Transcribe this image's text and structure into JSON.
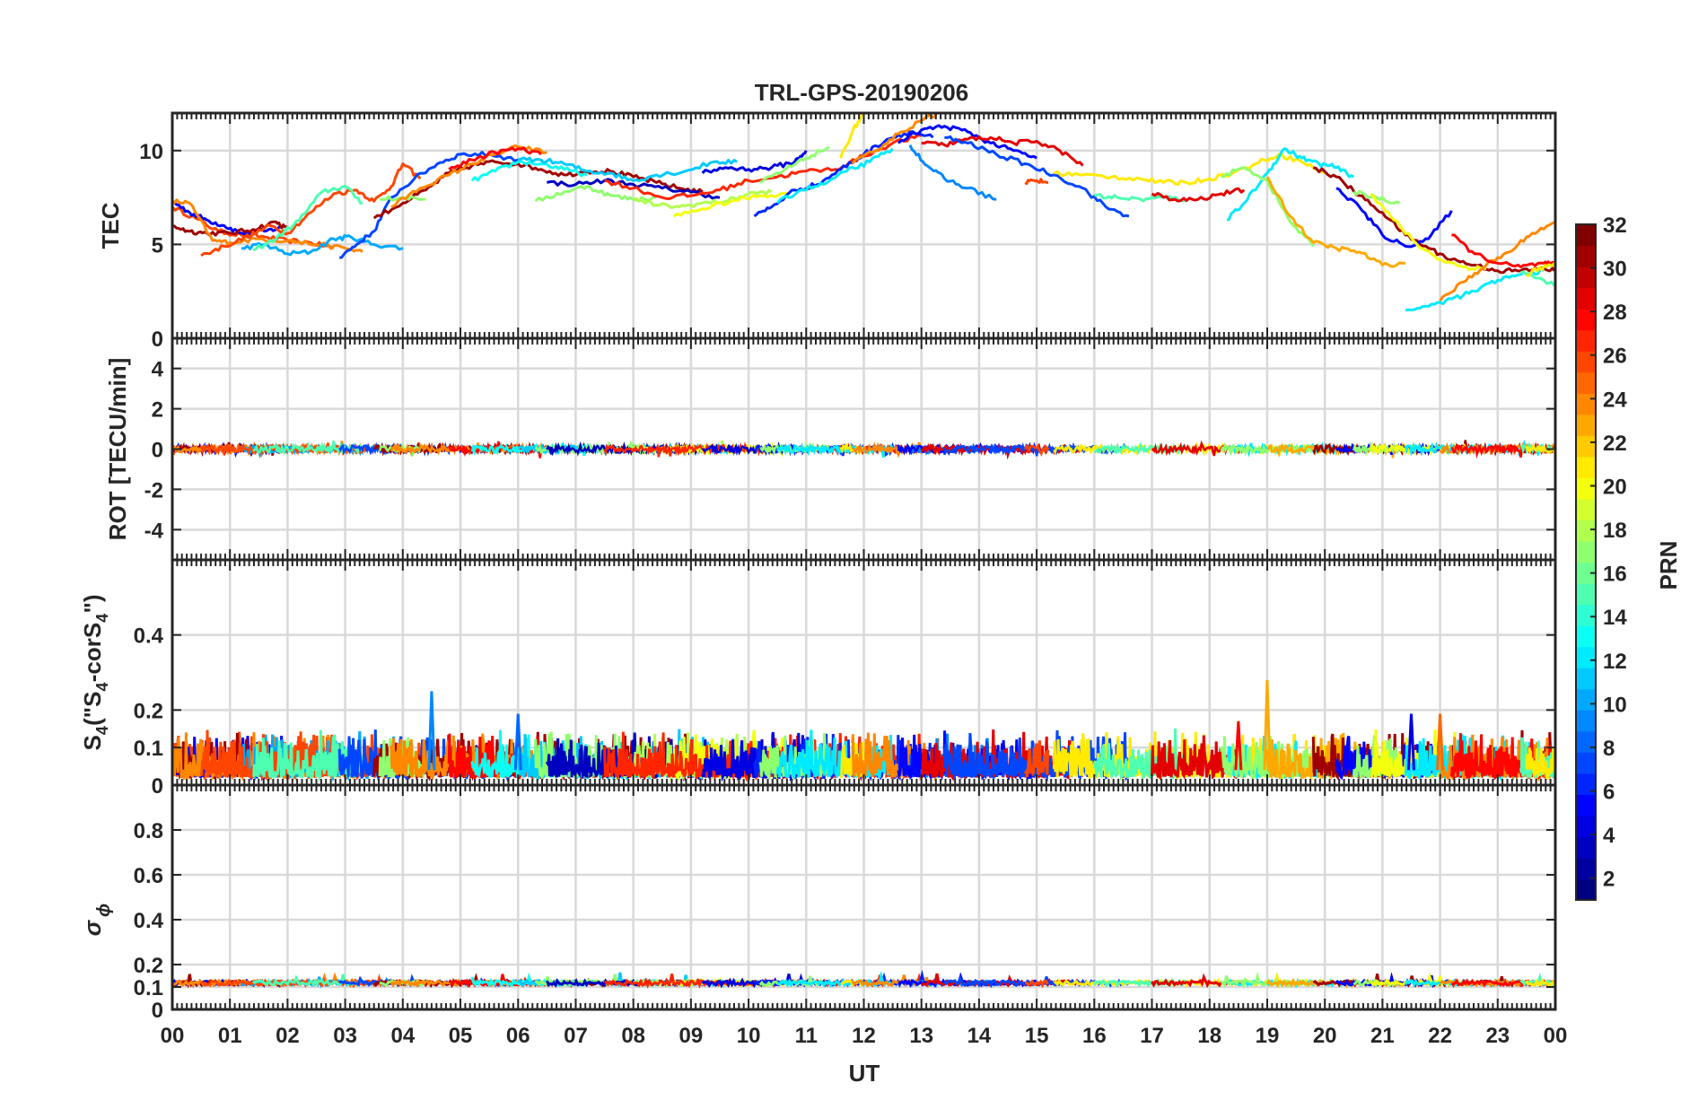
{
  "figure": {
    "title": "TRL-GPS-20190206",
    "xlabel": "UT",
    "x_tick_labels": [
      "00",
      "01",
      "02",
      "03",
      "04",
      "05",
      "06",
      "07",
      "08",
      "09",
      "10",
      "11",
      "12",
      "13",
      "14",
      "15",
      "16",
      "17",
      "18",
      "19",
      "20",
      "21",
      "22",
      "23",
      "00"
    ]
  },
  "colorbar": {
    "label": "PRN",
    "range": [
      1,
      32
    ],
    "tick_values": [
      2,
      4,
      6,
      8,
      10,
      12,
      14,
      16,
      18,
      20,
      22,
      24,
      26,
      28,
      30,
      32
    ],
    "tick_labels": [
      "2",
      "4",
      "6",
      "8",
      "10",
      "12",
      "14",
      "16",
      "18",
      "20",
      "22",
      "24",
      "26",
      "28",
      "30",
      "32"
    ],
    "colormap": "jet"
  },
  "panels": [
    {
      "id": "tec",
      "ylabel": "TEC",
      "ylim": [
        0,
        12
      ],
      "yticks": [
        0,
        5,
        10
      ],
      "ytick_labels": [
        "0",
        "5",
        "10"
      ]
    },
    {
      "id": "rot",
      "ylabel": "ROT [TECU/min]",
      "ylim": [
        -5.5,
        5.5
      ],
      "yticks": [
        -4,
        -2,
        0,
        2,
        4
      ],
      "ytick_labels": [
        "-4",
        "-2",
        "0",
        "2",
        "4"
      ]
    },
    {
      "id": "s4",
      "ylabel": "S",
      "ylabel_sub": "4",
      "ylabel_tail": " (\"S",
      "ylabel_sub2": "4",
      "ylabel_mid": "-corS",
      "ylabel_sub3": "4",
      "ylabel_end": "\")",
      "ylim": [
        0,
        0.6
      ],
      "yticks": [
        0,
        0.1,
        0.2,
        0.4
      ],
      "ytick_labels": [
        "0",
        "0.1",
        "0.2",
        "0.4"
      ]
    },
    {
      "id": "sigma",
      "ylabel": "σ",
      "ylabel_sub": "ϕ",
      "ylim": [
        0,
        1
      ],
      "yticks": [
        0,
        0.1,
        0.2,
        0.4,
        0.6,
        0.8
      ],
      "ytick_labels": [
        "0",
        "0.1",
        "0.2",
        "0.4",
        "0.6",
        "0.8"
      ]
    }
  ],
  "chart_data": [
    {
      "type": "line",
      "title": "TRL-GPS-20190206",
      "xlabel": "UT",
      "ylabel": "TEC",
      "xlim": [
        0,
        24
      ],
      "ylim": [
        0,
        12
      ],
      "series": [
        {
          "prn": 26,
          "x": [
            0.0,
            0.4,
            0.8,
            1.2,
            1.6,
            2.0,
            2.4,
            2.8
          ],
          "y": [
            7.0,
            6.4,
            5.7,
            5.5,
            5.4,
            5.2,
            5.1,
            4.8
          ]
        },
        {
          "prn": 5,
          "x": [
            0.0,
            0.3,
            0.6,
            0.9,
            1.2,
            1.6,
            1.9
          ],
          "y": [
            7.3,
            6.7,
            6.3,
            6.0,
            5.6,
            5.7,
            5.9
          ]
        },
        {
          "prn": 31,
          "x": [
            0.0,
            0.3,
            0.6,
            1.0,
            1.4,
            1.8,
            2.0
          ],
          "y": [
            6.0,
            5.7,
            5.6,
            5.6,
            5.8,
            6.2,
            5.8
          ]
        },
        {
          "prn": 24,
          "x": [
            0.0,
            0.3,
            0.7,
            1.0,
            1.5,
            2.0,
            2.5,
            3.0,
            3.3
          ],
          "y": [
            7.3,
            7.2,
            5.2,
            5.1,
            5.3,
            5.2,
            5.0,
            4.8,
            4.6
          ]
        },
        {
          "prn": 10,
          "x": [
            1.2,
            1.6,
            2.0,
            2.4,
            2.8,
            3.1,
            3.5,
            4.0
          ],
          "y": [
            4.8,
            5.0,
            4.5,
            4.6,
            5.3,
            5.4,
            5.0,
            4.8
          ]
        },
        {
          "prn": 26,
          "x": [
            0.5,
            0.9,
            1.3,
            1.7,
            2.0,
            2.4,
            2.8,
            3.2,
            3.5,
            3.8,
            4.0,
            4.3
          ],
          "y": [
            4.4,
            4.9,
            5.4,
            6.0,
            5.6,
            6.7,
            7.7,
            7.9,
            7.3,
            8.1,
            9.3,
            8.5
          ]
        },
        {
          "prn": 15,
          "x": [
            1.4,
            1.8,
            2.2,
            2.6,
            3.0,
            3.3
          ],
          "y": [
            4.7,
            5.3,
            6.3,
            7.8,
            8.1,
            7.2
          ]
        },
        {
          "prn": 7,
          "x": [
            2.9,
            3.2,
            3.5,
            3.8,
            4.2,
            4.6,
            5.0,
            5.5,
            6.0
          ],
          "y": [
            4.3,
            5.0,
            5.7,
            7.5,
            8.5,
            9.3,
            9.8,
            9.8,
            9.5
          ]
        },
        {
          "prn": 31,
          "x": [
            3.5,
            4.0,
            4.4,
            4.8,
            5.2,
            5.6,
            6.0,
            6.4,
            6.8,
            7.2,
            7.6,
            8.0,
            8.4,
            8.8,
            9.2
          ],
          "y": [
            6.4,
            7.2,
            7.9,
            8.8,
            9.2,
            9.4,
            9.3,
            9.0,
            8.7,
            8.9,
            8.9,
            8.6,
            8.3,
            8.0,
            7.8
          ]
        },
        {
          "prn": 17,
          "x": [
            3.6,
            4.0,
            4.4
          ],
          "y": [
            7.4,
            7.5,
            7.4
          ]
        },
        {
          "prn": 24,
          "x": [
            3.8,
            4.3,
            4.8,
            5.2,
            5.6,
            6.0,
            6.5
          ],
          "y": [
            7.0,
            8.0,
            8.7,
            9.3,
            9.8,
            10.2,
            9.9
          ]
        },
        {
          "prn": 28,
          "x": [
            4.8,
            5.2,
            5.6,
            6.0,
            6.4
          ],
          "y": [
            9.0,
            9.5,
            9.9,
            10.1,
            9.8
          ]
        },
        {
          "prn": 13,
          "x": [
            5.2,
            5.6,
            6.0,
            6.4,
            6.8,
            7.2
          ],
          "y": [
            8.4,
            8.9,
            9.4,
            9.3,
            9.0,
            8.7
          ]
        },
        {
          "prn": 11,
          "x": [
            6.0,
            6.4,
            6.8,
            7.2,
            7.6,
            8.0,
            8.4,
            8.9,
            9.4,
            9.8
          ],
          "y": [
            9.5,
            9.5,
            9.3,
            8.9,
            8.8,
            8.4,
            8.7,
            8.9,
            9.4,
            9.4
          ]
        },
        {
          "prn": 17,
          "x": [
            6.3,
            6.8,
            7.2,
            7.6,
            8.0,
            8.4
          ],
          "y": [
            7.3,
            7.8,
            8.1,
            7.6,
            7.4,
            7.5
          ]
        },
        {
          "prn": 3,
          "x": [
            6.5,
            7.0,
            7.5,
            8.0,
            8.5,
            9.0,
            9.5
          ],
          "y": [
            8.3,
            8.2,
            8.4,
            8.2,
            8.0,
            7.8,
            7.5
          ]
        },
        {
          "prn": 18,
          "x": [
            8.0,
            8.4,
            8.8,
            9.2,
            9.6,
            10.0,
            10.4
          ],
          "y": [
            7.4,
            7.1,
            7.0,
            7.2,
            7.3,
            7.7,
            7.8
          ]
        },
        {
          "prn": 20,
          "x": [
            8.7,
            9.2,
            9.7,
            10.2,
            10.7
          ],
          "y": [
            6.5,
            6.9,
            7.3,
            7.6,
            7.7
          ]
        },
        {
          "prn": 27,
          "x": [
            7.5,
            8.0,
            8.5,
            9.0,
            9.5,
            10.0,
            10.5,
            11.0,
            11.5,
            12.0,
            12.5,
            13.0
          ],
          "y": [
            8.4,
            8.0,
            7.5,
            7.6,
            7.9,
            8.4,
            8.6,
            8.9,
            9.0,
            9.7,
            10.4,
            10.8
          ]
        },
        {
          "prn": 4,
          "x": [
            9.2,
            9.6,
            10.0,
            10.4,
            10.8,
            11.0
          ],
          "y": [
            8.8,
            9.1,
            9.0,
            9.1,
            9.4,
            10.0
          ]
        },
        {
          "prn": 6,
          "x": [
            10.1,
            10.4,
            10.8,
            11.2,
            11.6,
            12.0,
            12.4,
            12.8,
            13.2
          ],
          "y": [
            6.5,
            7.0,
            7.9,
            8.2,
            9.0,
            9.8,
            10.6,
            11.0,
            10.7
          ]
        },
        {
          "prn": 17,
          "x": [
            10.2,
            10.6,
            11.0,
            11.4
          ],
          "y": [
            8.3,
            8.9,
            9.6,
            10.2
          ]
        },
        {
          "prn": 12,
          "x": [
            10.5,
            10.9,
            11.3,
            11.7,
            12.1,
            12.5
          ],
          "y": [
            7.2,
            7.9,
            8.2,
            8.9,
            9.4,
            10.1
          ]
        },
        {
          "prn": 21,
          "x": [
            11.6,
            11.8,
            12.0
          ],
          "y": [
            9.6,
            11.0,
            12.0
          ]
        },
        {
          "prn": 24,
          "x": [
            11.8,
            12.2,
            12.6,
            13.0,
            13.3
          ],
          "y": [
            9.3,
            10.0,
            10.9,
            11.6,
            12.0
          ]
        },
        {
          "prn": 9,
          "x": [
            12.8,
            13.1,
            13.4,
            13.8,
            14.3
          ],
          "y": [
            10.3,
            9.2,
            8.5,
            8.0,
            7.4
          ]
        },
        {
          "prn": 5,
          "x": [
            12.6,
            13.0,
            13.4,
            13.8,
            14.2,
            14.6,
            15.0
          ],
          "y": [
            10.4,
            11.1,
            11.3,
            11.0,
            10.4,
            10.0,
            9.6
          ]
        },
        {
          "prn": 29,
          "x": [
            13.0,
            13.4,
            13.8,
            14.2,
            14.6,
            15.0,
            15.4,
            15.8
          ],
          "y": [
            10.4,
            10.3,
            10.6,
            10.7,
            10.4,
            10.5,
            10.0,
            9.2
          ]
        },
        {
          "prn": 7,
          "x": [
            13.4,
            13.8,
            14.3,
            14.8,
            15.3,
            15.8,
            16.2,
            16.6
          ],
          "y": [
            10.7,
            10.4,
            9.8,
            9.3,
            8.7,
            8.0,
            7.0,
            6.5
          ]
        },
        {
          "prn": 26,
          "x": [
            14.8,
            15.0,
            15.2
          ],
          "y": [
            8.3,
            8.4,
            8.3
          ]
        },
        {
          "prn": 21,
          "x": [
            15.3,
            15.8,
            16.3,
            16.8,
            17.2,
            17.6,
            18.0,
            18.4,
            18.8,
            19.2,
            19.6,
            20.0
          ],
          "y": [
            8.8,
            8.7,
            8.6,
            8.5,
            8.3,
            8.3,
            8.5,
            8.8,
            9.3,
            9.8,
            9.4,
            8.8
          ]
        },
        {
          "prn": 15,
          "x": [
            16.0,
            16.4,
            16.8,
            17.2,
            17.6
          ],
          "y": [
            7.6,
            7.5,
            7.4,
            7.5,
            7.4
          ]
        },
        {
          "prn": 29,
          "x": [
            17.0,
            17.4,
            17.8,
            18.2,
            18.6
          ],
          "y": [
            7.7,
            7.4,
            7.4,
            7.7,
            7.9
          ]
        },
        {
          "prn": 12,
          "x": [
            18.3,
            18.6,
            19.0,
            19.3,
            19.6,
            19.9,
            20.2,
            20.5
          ],
          "y": [
            6.3,
            7.2,
            8.8,
            10.1,
            9.6,
            9.3,
            9.1,
            8.6
          ]
        },
        {
          "prn": 17,
          "x": [
            18.2,
            18.6,
            19.0,
            19.4,
            19.8
          ],
          "y": [
            8.6,
            9.1,
            8.4,
            6.2,
            4.9
          ]
        },
        {
          "prn": 23,
          "x": [
            19.0,
            19.4,
            19.8,
            20.2,
            20.6,
            21.0,
            21.4
          ],
          "y": [
            8.6,
            6.5,
            5.1,
            4.8,
            4.6,
            3.9,
            4.0
          ]
        },
        {
          "prn": 31,
          "x": [
            19.8,
            20.2,
            20.6,
            21.0,
            21.4,
            21.8,
            22.2,
            22.6,
            23.0,
            23.4,
            23.8,
            24.0
          ],
          "y": [
            9.1,
            8.6,
            7.6,
            6.7,
            5.5,
            4.8,
            4.2,
            3.9,
            3.6,
            3.6,
            3.7,
            3.6
          ]
        },
        {
          "prn": 5,
          "x": [
            20.2,
            20.6,
            21.0,
            21.4,
            21.8,
            22.2
          ],
          "y": [
            8.0,
            7.0,
            5.5,
            4.9,
            5.3,
            6.8
          ]
        },
        {
          "prn": 17,
          "x": [
            20.5,
            20.9,
            21.3
          ],
          "y": [
            7.8,
            7.5,
            7.2
          ]
        },
        {
          "prn": 20,
          "x": [
            20.8,
            21.2,
            21.6,
            22.0,
            22.4,
            22.8
          ],
          "y": [
            7.7,
            6.3,
            5.0,
            4.2,
            3.8,
            3.7
          ]
        },
        {
          "prn": 12,
          "x": [
            21.4,
            21.8,
            22.2,
            22.6,
            23.0,
            23.4,
            23.8
          ],
          "y": [
            1.5,
            1.7,
            2.1,
            2.5,
            3.1,
            3.4,
            3.6
          ]
        },
        {
          "prn": 24,
          "x": [
            22.0,
            22.4,
            22.8,
            23.2,
            23.6,
            24.0
          ],
          "y": [
            2.0,
            3.0,
            3.9,
            4.6,
            5.6,
            6.2
          ]
        },
        {
          "prn": 28,
          "x": [
            22.2,
            22.6,
            23.0,
            23.4,
            23.8,
            24.0
          ],
          "y": [
            5.5,
            4.5,
            4.0,
            3.8,
            4.0,
            3.9
          ]
        },
        {
          "prn": 15,
          "x": [
            23.4,
            23.8,
            24.0
          ],
          "y": [
            3.5,
            3.1,
            2.8
          ]
        },
        {
          "prn": 21,
          "x": [
            23.5,
            23.8,
            24.0
          ],
          "y": [
            3.4,
            3.8,
            4.0
          ]
        }
      ]
    },
    {
      "type": "line",
      "ylabel": "ROT [TECU/min]",
      "xlim": [
        0,
        24
      ],
      "ylim": [
        -5.5,
        5.5
      ],
      "description_values": "ROT values are centered near 0 with fluctuations of roughly ±0.3 TECU/min for all PRNs throughout the day"
    },
    {
      "type": "line",
      "ylabel": "S4 (\"S4-corS4\")",
      "xlim": [
        0,
        24
      ],
      "ylim": [
        0,
        0.6
      ],
      "annotations": [
        {
          "x": 4.5,
          "y": 0.25,
          "prn": 9
        },
        {
          "x": 19.0,
          "y": 0.28,
          "prn": 23
        },
        {
          "x": 6.0,
          "y": 0.19,
          "prn": 8
        },
        {
          "x": 21.5,
          "y": 0.19,
          "prn": 4
        },
        {
          "x": 22.0,
          "y": 0.19,
          "prn": 25
        },
        {
          "x": 18.5,
          "y": 0.17,
          "prn": 28
        }
      ],
      "typical_range": [
        0.02,
        0.14
      ]
    },
    {
      "type": "line",
      "ylabel": "σϕ",
      "xlim": [
        0,
        24
      ],
      "ylim": [
        0,
        1
      ],
      "typical_range": [
        0.1,
        0.17
      ]
    }
  ]
}
